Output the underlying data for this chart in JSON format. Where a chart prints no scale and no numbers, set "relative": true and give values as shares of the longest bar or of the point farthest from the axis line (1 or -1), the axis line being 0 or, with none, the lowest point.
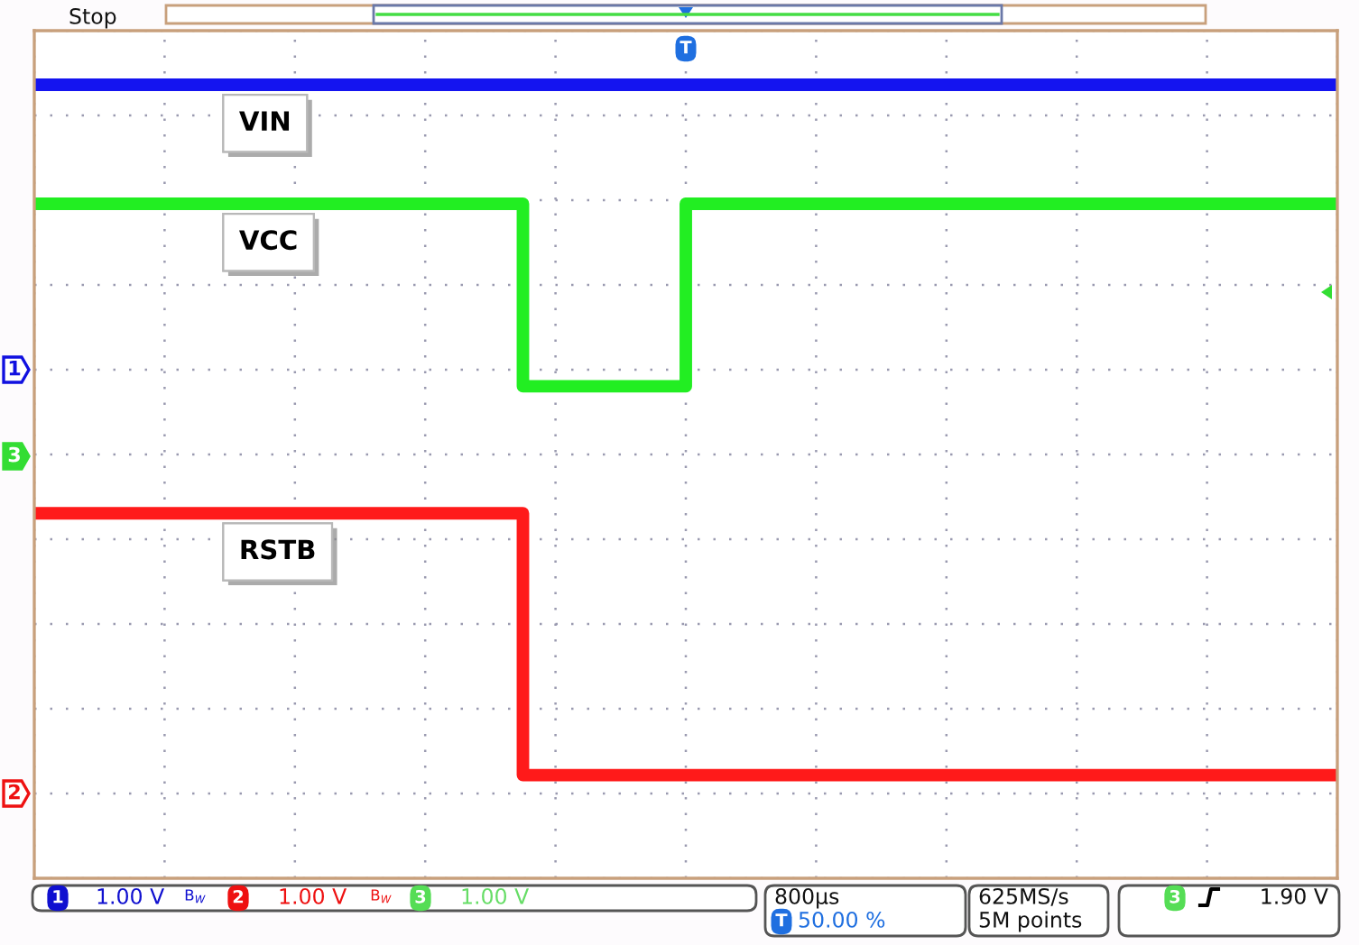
{
  "chart_data": {
    "type": "step",
    "relative": true,
    "grid": true,
    "categories": [
      null,
      null,
      null,
      null,
      null,
      null,
      null,
      null,
      null,
      null,
      null,
      null,
      null,
      null,
      null,
      null,
      null,
      null,
      null,
      null,
      null,
      null,
      null,
      null,
      null,
      null,
      null,
      null,
      null,
      null,
      null,
      null,
      null,
      null,
      null,
      null,
      null,
      null,
      null,
      null,
      null
    ],
    "series": [
      {
        "name": "VIN",
        "color": "#1414f0",
        "values": [
          1,
          1,
          1,
          1,
          1,
          1,
          1,
          1,
          1,
          1,
          1,
          1,
          1,
          1,
          1,
          1,
          1,
          1,
          1,
          1,
          1,
          1,
          1,
          1,
          1,
          1,
          1,
          1,
          1,
          1,
          1,
          1,
          1,
          1,
          1,
          1,
          1,
          1,
          1,
          1,
          1
        ]
      },
      {
        "name": "VCC",
        "color": "#22ee22",
        "values": [
          0.85,
          0.85,
          0.85,
          0.85,
          0.85,
          0.85,
          0.85,
          0.85,
          0.85,
          0.85,
          0.85,
          0.85,
          0.85,
          0.85,
          0.85,
          0.62,
          0.62,
          0.62,
          0.62,
          0.62,
          0.85,
          0.85,
          0.85,
          0.85,
          0.85,
          0.85,
          0.85,
          0.85,
          0.85,
          0.85,
          0.85,
          0.85,
          0.85,
          0.85,
          0.85,
          0.85,
          0.85,
          0.85,
          0.85,
          0.85,
          0.85
        ]
      },
      {
        "name": "RSTB",
        "color": "#ff1a1a",
        "values": [
          0.46,
          0.46,
          0.46,
          0.46,
          0.46,
          0.46,
          0.46,
          0.46,
          0.46,
          0.46,
          0.46,
          0.46,
          0.46,
          0.46,
          0.46,
          0.13,
          0.13,
          0.13,
          0.13,
          0.13,
          0.13,
          0.13,
          0.13,
          0.13,
          0.13,
          0.13,
          0.13,
          0.13,
          0.13,
          0.13,
          0.13,
          0.13,
          0.13,
          0.13,
          0.13,
          0.13,
          0.13,
          0.13,
          0.13,
          0.13,
          0.13
        ]
      }
    ],
    "annotations": [
      "Stop",
      "T",
      "1",
      "3",
      "2",
      "1",
      "1.00 V",
      "B$_{W}$",
      "2",
      "1.00 V",
      "B$_{W}$",
      "3",
      "1.00 V",
      "800µs",
      "T",
      "50.00 %",
      "625MS/s",
      "5M points",
      "3",
      "1.90 V"
    ]
  }
}
